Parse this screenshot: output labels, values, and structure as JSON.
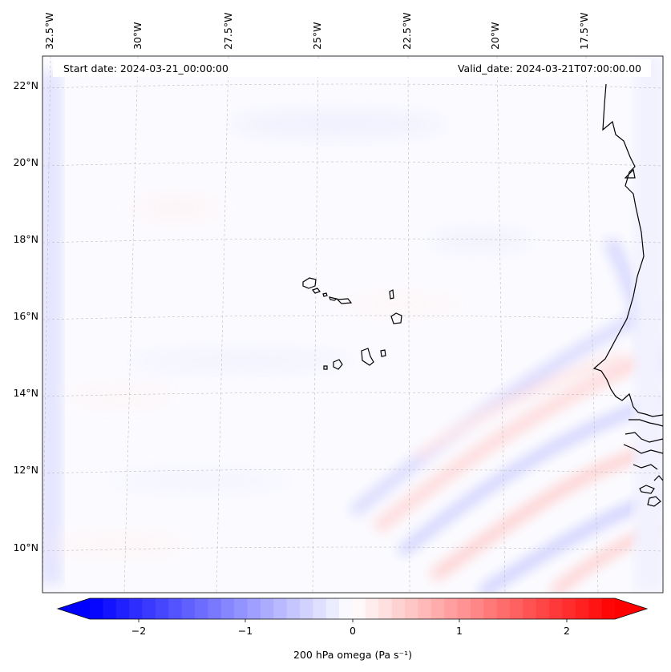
{
  "header": {
    "start_date": "Start date: 2024-03-21_00:00:00",
    "valid_date": "Valid_date: 2024-03-21T07:00:00.00"
  },
  "map": {
    "lon_labels": [
      "32.5°W",
      "30°W",
      "27.5°W",
      "25°W",
      "22.5°W",
      "20°W",
      "17.5°W"
    ],
    "lat_labels": [
      "22°N",
      "20°N",
      "18°N",
      "16°N",
      "14°N",
      "12°N",
      "10°N"
    ],
    "gridlines": "dashed",
    "field": "200 hPa omega",
    "colormap": "bwr"
  },
  "colorbar": {
    "label": "200 hPa omega (Pa s⁻¹)",
    "ticks": [
      "−2",
      "−1",
      "0",
      "1",
      "2"
    ],
    "range": [
      -2.6,
      2.6
    ],
    "extend": "both",
    "colors": {
      "min": "#0000ff",
      "mid": "#ffffff",
      "max": "#ff0000"
    }
  }
}
